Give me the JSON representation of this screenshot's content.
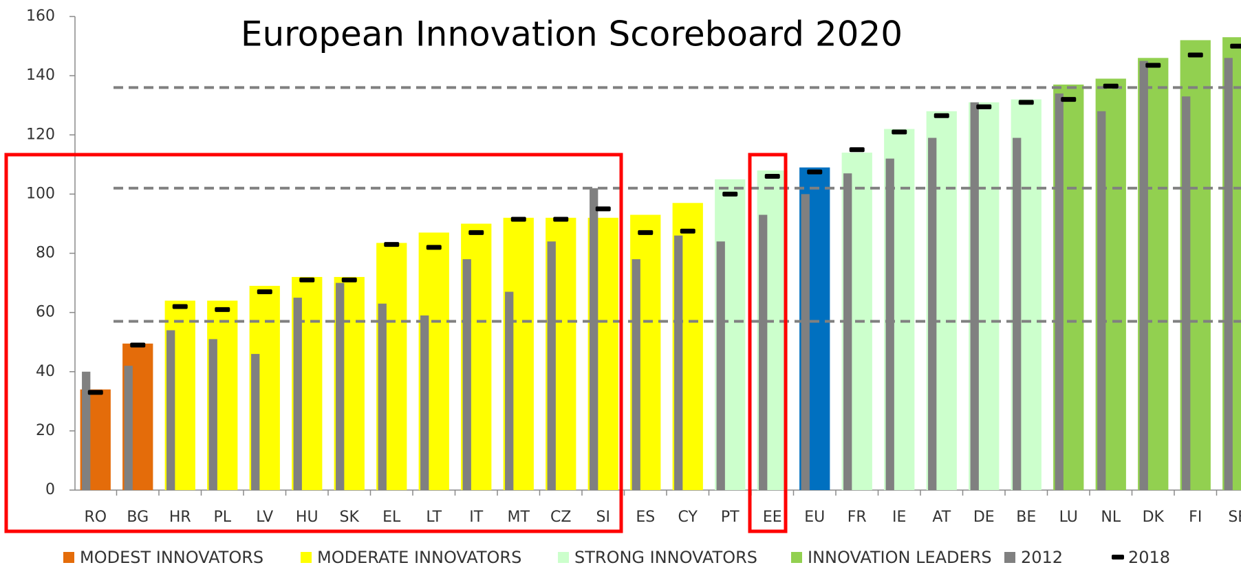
{
  "chart_data": {
    "type": "bar",
    "title": "European Innovation Scoreboard 2020",
    "categories": [
      "RO",
      "BG",
      "HR",
      "PL",
      "LV",
      "HU",
      "SK",
      "EL",
      "LT",
      "IT",
      "MT",
      "CZ",
      "SI",
      "ES",
      "CY",
      "PT",
      "EE",
      "EU",
      "FR",
      "IE",
      "AT",
      "DE",
      "BE",
      "LU",
      "NL",
      "DK",
      "FI",
      "SE"
    ],
    "series": [
      {
        "values": [
          34,
          49.5,
          64,
          64,
          69,
          72,
          72,
          83.5,
          87,
          90,
          92,
          92,
          92,
          93,
          97,
          105,
          108,
          109,
          114,
          122,
          128,
          131,
          132,
          137,
          139,
          146,
          152,
          153
        ],
        "colors": [
          "#e46c0a",
          "#e46c0a",
          "#ffff00",
          "#ffff00",
          "#ffff00",
          "#ffff00",
          "#ffff00",
          "#ffff00",
          "#ffff00",
          "#ffff00",
          "#ffff00",
          "#ffff00",
          "#ffff00",
          "#ffff00",
          "#ffff00",
          "#ccffcc",
          "#ccffcc",
          "#0070c0",
          "#ccffcc",
          "#ccffcc",
          "#ccffcc",
          "#ccffcc",
          "#ccffcc",
          "#92d050",
          "#92d050",
          "#92d050",
          "#92d050",
          "#92d050"
        ]
      },
      {
        "name": "2012",
        "color": "#808080",
        "values": [
          40,
          42,
          54,
          51,
          46,
          65,
          70,
          63,
          59,
          78,
          67,
          84,
          102,
          78,
          86,
          84,
          93,
          100,
          107,
          112,
          119,
          131,
          119,
          134,
          128,
          145,
          133,
          146
        ]
      },
      {
        "name": "2018",
        "color": "#000000",
        "values": [
          33,
          49,
          62,
          61,
          67,
          71,
          71,
          83,
          82,
          87,
          91.5,
          91.5,
          95,
          87,
          87.5,
          100,
          106,
          107.5,
          115,
          121,
          126.5,
          129.5,
          131,
          132,
          136.5,
          143.5,
          147,
          150
        ]
      }
    ],
    "legend_groups": [
      {
        "name": "MODEST INNOVATORS",
        "color": "#e46c0a"
      },
      {
        "name": "MODERATE INNOVATORS",
        "color": "#ffff00"
      },
      {
        "name": "STRONG INNOVATORS",
        "color": "#ccffcc"
      },
      {
        "name": "INNOVATION LEADERS",
        "color": "#92d050"
      }
    ],
    "reference_lines": [
      57,
      102,
      136
    ],
    "ylim": [
      0,
      160
    ],
    "yticks": [
      0,
      20,
      40,
      60,
      80,
      100,
      120,
      140,
      160
    ]
  }
}
